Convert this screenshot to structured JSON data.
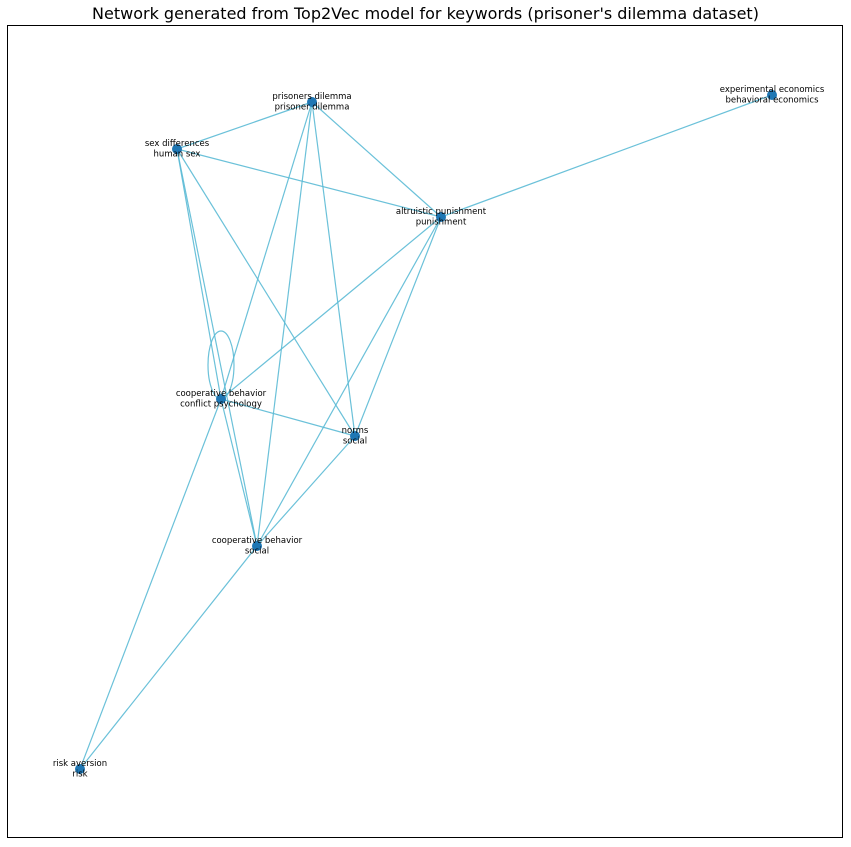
{
  "title": "Network generated from Top2Vec model for keywords (prisoner's dilemma dataset)",
  "colors": {
    "edge": "#5bbad5",
    "node": "#1f77b4",
    "background": "#ffffff"
  },
  "nodes": [
    {
      "id": "pd",
      "lines": [
        "prisoners dilemma",
        "prisoner dilemma"
      ]
    },
    {
      "id": "ee",
      "lines": [
        "experimental economics",
        "behavioral economics"
      ]
    },
    {
      "id": "sd",
      "lines": [
        "sex differences",
        "human sex"
      ]
    },
    {
      "id": "ap",
      "lines": [
        "altruistic punishment",
        "punishment"
      ]
    },
    {
      "id": "cb1",
      "lines": [
        "cooperative behavior",
        "conflict psychology"
      ]
    },
    {
      "id": "ns",
      "lines": [
        "norms",
        "social"
      ]
    },
    {
      "id": "cb2",
      "lines": [
        "cooperative behavior",
        "social"
      ]
    },
    {
      "id": "ra",
      "lines": [
        "risk aversion",
        "risk"
      ]
    }
  ],
  "edges": [
    [
      "pd",
      "sd"
    ],
    [
      "pd",
      "ap"
    ],
    [
      "pd",
      "cb1"
    ],
    [
      "pd",
      "ns"
    ],
    [
      "pd",
      "cb2"
    ],
    [
      "ee",
      "ap"
    ],
    [
      "sd",
      "ap"
    ],
    [
      "sd",
      "cb1"
    ],
    [
      "sd",
      "ns"
    ],
    [
      "sd",
      "cb2"
    ],
    [
      "ap",
      "cb1"
    ],
    [
      "ap",
      "ns"
    ],
    [
      "ap",
      "cb2"
    ],
    [
      "cb1",
      "ns"
    ],
    [
      "cb1",
      "cb2"
    ],
    [
      "cb1",
      "ra"
    ],
    [
      "cb1",
      "cb1"
    ],
    [
      "ns",
      "cb2"
    ],
    [
      "cb2",
      "ra"
    ]
  ]
}
